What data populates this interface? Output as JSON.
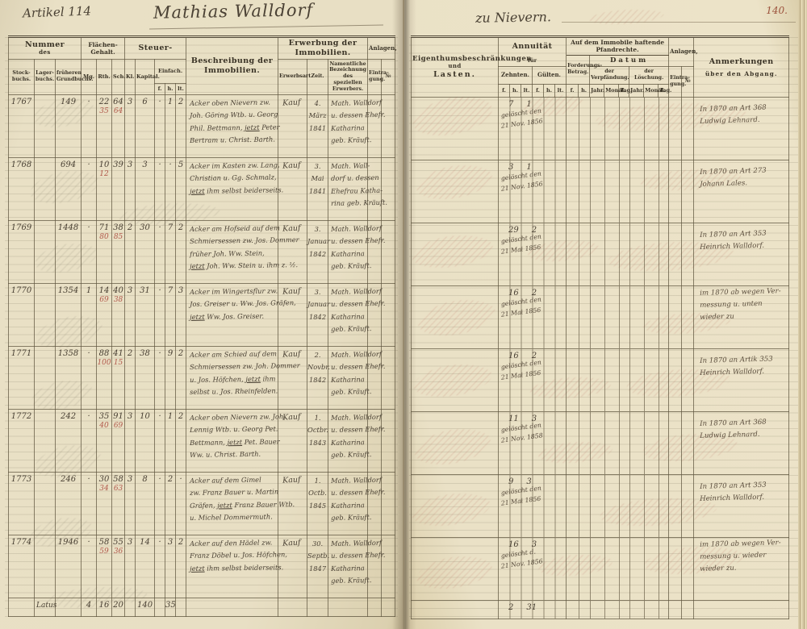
{
  "scan": {
    "left_page": {
      "artikel": "Artikel 114",
      "owner_title": "Mathias Walldorf"
    },
    "right_page": {
      "place": "zu Nievern.",
      "page_number": "140."
    },
    "left_headers": {
      "nummer": "Nummer",
      "nummer_des": "des",
      "stockbuch": "Stock-buchs.",
      "lagerbuch": "Lager-buchs.",
      "grundbuch": "früheren Grundbuchs.",
      "flaechen": "Flächen-Gehalt.",
      "mg": "Mg.",
      "rth": "Rth.",
      "sch": "Sch.",
      "steuer": "Steuer-",
      "kl": "Kl.",
      "kapital": "Kapital.",
      "einfach": "Einfach.",
      "f": "f.",
      "h": "h.",
      "lt": "lt.",
      "beschreibung": "Beschreibung der Immobilien.",
      "erwerbung": "Erwerbung der Immobilien.",
      "erwerbsart": "Erwerbsart.",
      "zeit": "Zeit.",
      "namentlich": "Namentliche Bezeichnung des speziellen Erwerbers.",
      "anlagen": "Anlagen,",
      "eintragung": "Eintra-gung.",
      "nr_sign": "№"
    },
    "right_headers": {
      "lasten_1": "Eigenthumsbeschränkungen",
      "lasten_2": "und",
      "lasten_3": "Lasten.",
      "annuitaet": "Annuität",
      "fuer": "für",
      "zehnten": "Zehnten.",
      "guelten": "Gülten.",
      "f": "f.",
      "h": "h.",
      "lt": "lt.",
      "pfandrechte": "Auf dem Immobile haftende Pfandrechte.",
      "forderung": "Forderungs-Betrag.",
      "datum": "Datum",
      "verpfaendung": "der Verpfändung.",
      "loeschung": "der Löschung.",
      "jahr": "Jahr.",
      "monat": "Monat.",
      "tag": "Tag.",
      "anlagen": "Anlagen,",
      "eintragung": "Eintra-gung.",
      "nr_sign": "№",
      "anmerkungen": "Anmerkungen",
      "abgang": "über den Abgang."
    },
    "rows": [
      {
        "nr": "1767",
        "gb": "149",
        "fl": [
          "·",
          "22",
          "64"
        ],
        "flr": [
          "",
          "35",
          "64"
        ],
        "kl": "3",
        "kap": "6",
        "einf": [
          "·",
          "1",
          "2"
        ],
        "beschr": [
          "Acker oben Nievern zw.",
          "Joh. Göring Wtb. u. Georg",
          "Phil. Bettmann, jetzt Peter",
          "Bertram u. Christ. Barth."
        ],
        "art": "Kauf",
        "zeit": [
          "4.",
          "März",
          "1841"
        ],
        "erw": [
          "Math. Walldorf",
          "u. dessen Ehefr.",
          "Katharina",
          "geb. Kräuft."
        ],
        "ann": [
          "7",
          "1"
        ],
        "gel": [
          "gelöscht den",
          "21 Nov. 1856"
        ],
        "anm": [
          "In 1870 an Art 368",
          "Ludwig Lehnard."
        ]
      },
      {
        "nr": "1768",
        "gb": "694",
        "fl": [
          "·",
          "10",
          "39"
        ],
        "flr": [
          "",
          "12",
          ""
        ],
        "kl": "3",
        "kap": "3",
        "einf": [
          "·",
          "·",
          "5"
        ],
        "beschr": [
          "Acker im Kasten zw. Lang,",
          "Christian u. Gg. Schmalz,",
          "jetzt ihm selbst beiderseits."
        ],
        "art": "Kauf",
        "zeit": [
          "3.",
          "Mai",
          "1841"
        ],
        "erw": [
          "Math. Wall-",
          "dorf u. dessen",
          "Ehefrau Katha-",
          "rina geb. Kräuft."
        ],
        "ann": [
          "3",
          "1"
        ],
        "gel": [
          "gelöscht den",
          "21 Nov. 1856"
        ],
        "anm": [
          "In 1870 an Art 273",
          "Johann Lales."
        ]
      },
      {
        "nr": "1769",
        "gb": "1448",
        "fl": [
          "·",
          "71",
          "38"
        ],
        "flr": [
          "",
          "80",
          "85"
        ],
        "kl": "2",
        "kap": "30",
        "einf": [
          "·",
          "7",
          "2"
        ],
        "beschr": [
          "Acker am Hofseid auf dem",
          "Schmiersessen zw. Jos. Dommer",
          "früher Joh. Ww. Stein,",
          "jetzt Joh. Ww. Stein u. ihm z. ½."
        ],
        "art": "Kauf",
        "zeit": [
          "3.",
          "Januar",
          "1842"
        ],
        "erw": [
          "Math. Walldorf",
          "u. dessen Ehefr.",
          "Katharina",
          "geb. Kräuft."
        ],
        "ann": [
          "29",
          "2"
        ],
        "gel": [
          "gelöscht den",
          "21 Mai 1856"
        ],
        "anm": [
          "In 1870 an Art 353",
          "Heinrich Walldorf."
        ]
      },
      {
        "nr": "1770",
        "gb": "1354",
        "fl": [
          "1",
          "14",
          "40"
        ],
        "flr": [
          "",
          "69",
          "38"
        ],
        "kl": "3",
        "kap": "31",
        "einf": [
          "·",
          "7",
          "3"
        ],
        "beschr": [
          "Acker im Wingertsflur zw.",
          "Jos. Greiser u. Ww. Jos. Gräfen,",
          "jetzt Ww. Jos. Greiser."
        ],
        "art": "Kauf",
        "zeit": [
          "3.",
          "Januar",
          "1842"
        ],
        "erw": [
          "Math. Walldorf",
          "u. dessen Ehefr.",
          "Katharina",
          "geb. Kräuft."
        ],
        "ann": [
          "16",
          "2"
        ],
        "gel": [
          "gelöscht den",
          "21 Mai 1856"
        ],
        "anm": [
          "im 1870 ab wegen Ver-",
          "messung u. unten",
          "wieder zu"
        ]
      },
      {
        "nr": "1771",
        "gb": "1358",
        "fl": [
          "·",
          "88",
          "41"
        ],
        "flr": [
          "",
          "100",
          "15"
        ],
        "kl": "2",
        "kap": "38",
        "einf": [
          "·",
          "9",
          "2"
        ],
        "beschr": [
          "Acker am Schied auf dem",
          "Schmiersessen zw. Joh. Dommer",
          "u. Jos. Höfchen, jetzt ihm",
          "selbst u. Jos. Rheinfelden."
        ],
        "art": "Kauf",
        "zeit": [
          "2.",
          "Novbr.",
          "1842"
        ],
        "erw": [
          "Math. Walldorf",
          "u. dessen Ehefr.",
          "Katharina",
          "geb. Kräuft."
        ],
        "ann": [
          "16",
          "2"
        ],
        "gel": [
          "gelöscht den",
          "21 Mai 1856"
        ],
        "anm": [
          "In 1870 an Artik 353",
          "Heinrich Walldorf."
        ]
      },
      {
        "nr": "1772",
        "gb": "242",
        "fl": [
          "·",
          "35",
          "91"
        ],
        "flr": [
          "",
          "40",
          "69"
        ],
        "kl": "3",
        "kap": "10",
        "einf": [
          "·",
          "1",
          "2"
        ],
        "beschr": [
          "Acker oben Nievern zw. Joh.",
          "Lennig Wtb. u. Georg Pet.",
          "Bettmann, jetzt Pet. Bauer",
          "Ww. u. Christ. Barth."
        ],
        "art": "Kauf",
        "zeit": [
          "1.",
          "Octbr.",
          "1843"
        ],
        "erw": [
          "Math. Walldorf",
          "u. dessen Ehefr.",
          "Katharina",
          "geb. Kräuft."
        ],
        "ann": [
          "11",
          "3"
        ],
        "gel": [
          "gelöscht den",
          "21 Nov. 1858"
        ],
        "anm": [
          "In 1870 an Art 368",
          "Ludwig Lehnard."
        ]
      },
      {
        "nr": "1773",
        "gb": "246",
        "fl": [
          "·",
          "30",
          "58"
        ],
        "flr": [
          "",
          "34",
          "63"
        ],
        "kl": "3",
        "kap": "8",
        "einf": [
          "·",
          "2",
          "·"
        ],
        "beschr": [
          "Acker auf dem Gimel",
          "zw. Franz Bauer u. Martin",
          "Gräfen, jetzt Franz Bauer Wtb.",
          "u. Michel Dommermuth."
        ],
        "art": "Kauf",
        "zeit": [
          "1.",
          "Octb.",
          "1845"
        ],
        "erw": [
          "Math. Walldorf",
          "u. dessen Ehefr.",
          "Katharina",
          "geb. Kräuft."
        ],
        "ann": [
          "9",
          "3"
        ],
        "gel": [
          "gelöscht den",
          "21 Mai 1856"
        ],
        "anm": [
          "In 1870 an Art 353",
          "Heinrich Walldorf."
        ]
      },
      {
        "nr": "1774",
        "gb": "1946",
        "fl": [
          "·",
          "58",
          "55"
        ],
        "flr": [
          "",
          "59",
          "36"
        ],
        "kl": "3",
        "kap": "14",
        "einf": [
          "·",
          "3",
          "2"
        ],
        "beschr": [
          "Acker auf den Hädel zw.",
          "Franz Döbel u. Jos. Höfchen,",
          "jetzt ihm selbst beiderseits."
        ],
        "art": "Kauf",
        "zeit": [
          "30.",
          "Septb.",
          "1847"
        ],
        "erw": [
          "Math. Walldorf",
          "u. dessen Ehefr.",
          "Katharina",
          "geb. Kräuft."
        ],
        "ann": [
          "16",
          "3"
        ],
        "gel": [
          "gelöscht d.",
          "21 Nov. 1856"
        ],
        "anm": [
          "im 1870 ab wegen Ver-",
          "messung u. wieder",
          "wieder zu."
        ]
      }
    ],
    "sum_row": {
      "latus": "Latus",
      "mg": "4",
      "rth": "16",
      "sch": "20",
      "kapital": "140",
      "einfach": "35",
      "ann": [
        "2",
        "31"
      ]
    },
    "colors": {
      "paper": "#e9e0c5",
      "ink_print": "#3a3326",
      "ink_hand": "#4a4134",
      "ink_red": "#b0584a",
      "page_number_red": "#9c523c"
    }
  }
}
